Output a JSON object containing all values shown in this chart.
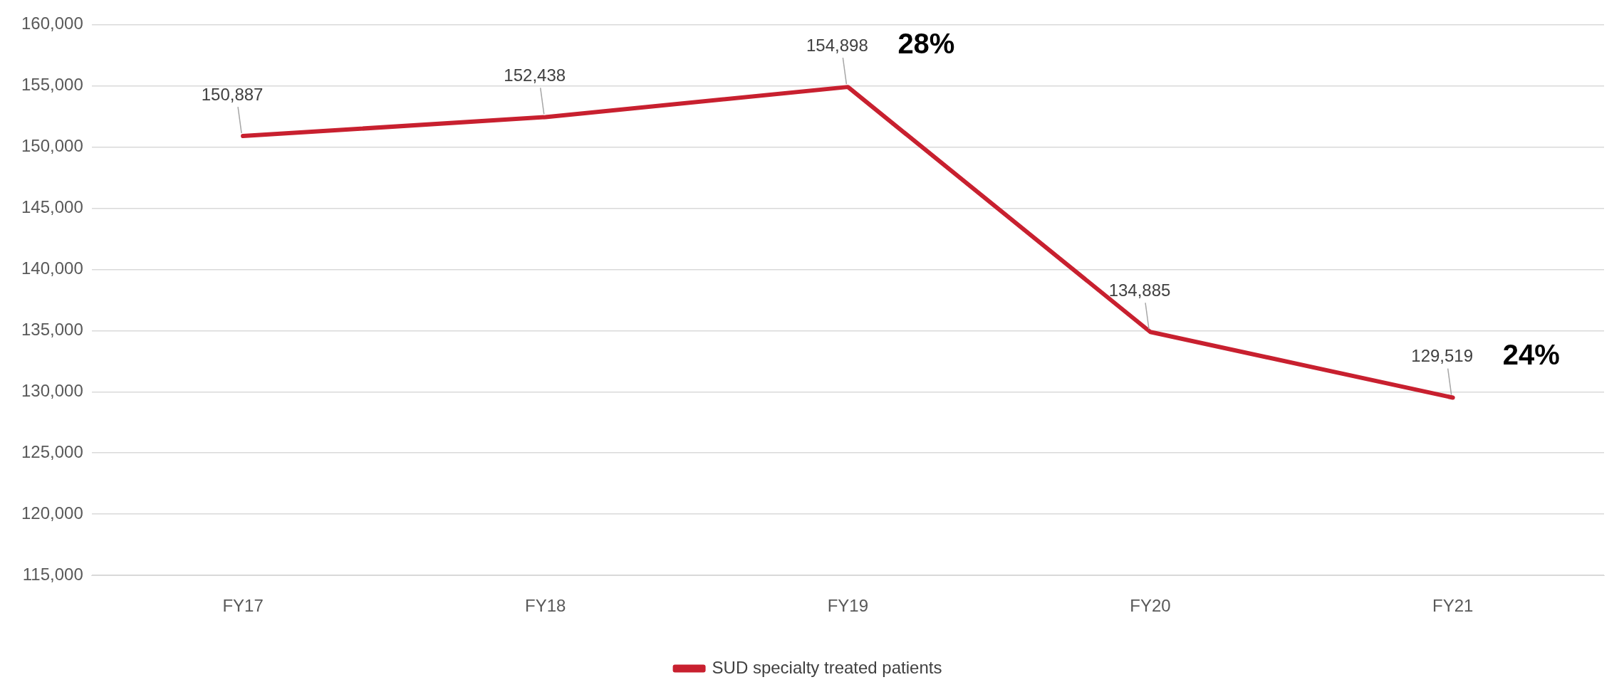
{
  "chart_data": {
    "type": "line",
    "categories": [
      "FY17",
      "FY18",
      "FY19",
      "FY20",
      "FY21"
    ],
    "series": [
      {
        "name": "SUD specialty treated patients",
        "color": "#c8202f",
        "values": [
          150887,
          152438,
          154898,
          134885,
          129519
        ],
        "value_labels": [
          "150,887",
          "152,438",
          "154,898",
          "134,885",
          "129,519"
        ]
      }
    ],
    "ylim": [
      115000,
      160000
    ],
    "yticks": [
      {
        "value": 115000,
        "label": "115,000"
      },
      {
        "value": 120000,
        "label": "120,000"
      },
      {
        "value": 125000,
        "label": "125,000"
      },
      {
        "value": 130000,
        "label": "130,000"
      },
      {
        "value": 135000,
        "label": "135,000"
      },
      {
        "value": 140000,
        "label": "140,000"
      },
      {
        "value": 145000,
        "label": "145,000"
      },
      {
        "value": 150000,
        "label": "150,000"
      },
      {
        "value": 155000,
        "label": "155,000"
      },
      {
        "value": 160000,
        "label": "160,000"
      }
    ],
    "annotations": [
      {
        "text": "28%",
        "x": "FY19",
        "y": 154898
      },
      {
        "text": "24%",
        "x": "FY21",
        "y": 129519
      }
    ],
    "grid": "y",
    "legend": "bottom"
  }
}
